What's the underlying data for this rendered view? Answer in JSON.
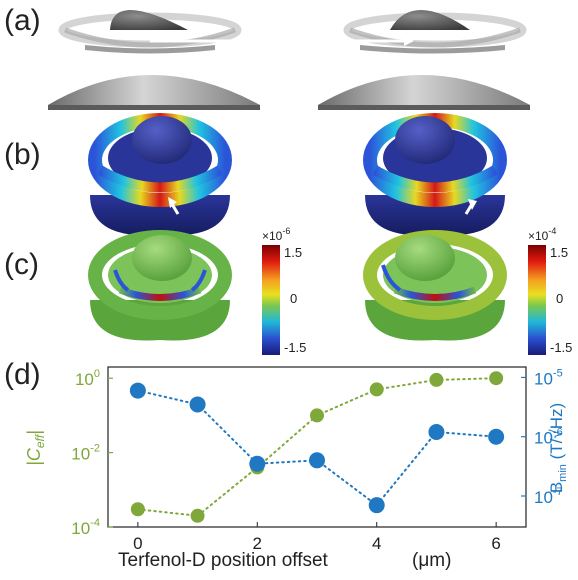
{
  "panels": {
    "a": "(a)",
    "b": "(b)",
    "c": "(c)",
    "d": "(d)"
  },
  "colorbars": {
    "left": {
      "exponent": "×10",
      "exp_power": "-6",
      "top": "1.5",
      "mid": "0",
      "bottom": "-1.5"
    },
    "right": {
      "exponent": "×10",
      "exp_power": "-4",
      "top": "1.5",
      "mid": "0",
      "bottom": "-1.5"
    }
  },
  "colors": {
    "green_series": "#7fa83a",
    "blue_series": "#1f78c1",
    "surface_green": "#6cb84a",
    "resonator_blue": "#2b3a9a"
  },
  "chart_data": {
    "type": "scatter",
    "x": [
      0,
      1,
      2,
      3,
      4,
      5,
      6
    ],
    "xlim": [
      -0.5,
      6.5
    ],
    "xticks": [
      "0",
      "2",
      "4",
      "6"
    ],
    "xlabel": "Terfenol-D position offset",
    "xunit": "(μm)",
    "series": [
      {
        "name": "|C_eff|",
        "axis": "left",
        "values": [
          0.0003,
          0.0002,
          0.004,
          0.1,
          0.5,
          0.9,
          1.0
        ],
        "ylim": [
          0.0001,
          2
        ],
        "yscale": "log",
        "yticks": [
          {
            "base": "10",
            "exp": "0",
            "value": 1
          },
          {
            "base": "10",
            "exp": "-2",
            "value": 0.01
          },
          {
            "base": "10",
            "exp": "-4",
            "value": 0.0001
          }
        ],
        "ylabel": "|C",
        "ylabel_sub": "eff",
        "ylabel_end": "|"
      },
      {
        "name": "B_min",
        "axis": "right",
        "values": [
          6e-06,
          3.5e-06,
          3.5e-07,
          4e-07,
          7e-08,
          1.2e-06,
          1e-06
        ],
        "ylim": [
          3e-08,
          1.5e-05
        ],
        "yscale": "log",
        "yticks": [
          {
            "base": "10",
            "exp": "-5",
            "value": 1e-05
          },
          {
            "base": "10",
            "exp": "-6",
            "value": 1e-06
          },
          {
            "base": "10",
            "exp": "-7",
            "value": 1e-07
          }
        ],
        "ylabel": "B",
        "ylabel_sub": "min",
        "ylabel_unit": "(T/√Hz)"
      }
    ]
  }
}
